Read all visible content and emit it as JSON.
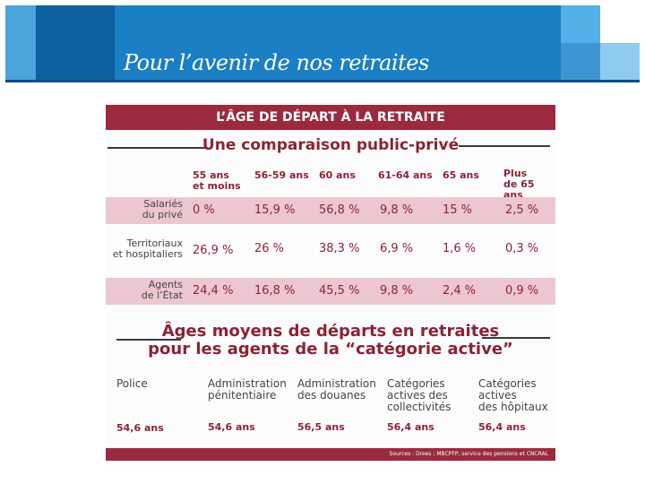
{
  "banner": {
    "title": "Pour l’avenir de nos retraites"
  },
  "doc": {
    "header": "L’ÂGE DE DÉPART À LA RETRAITE",
    "section1_title": "Une comparaison public-privé",
    "columns": [
      "55 ans\net moins",
      "56-59 ans",
      "60 ans",
      "61-64 ans",
      "65 ans",
      "Plus\nde 65 ans"
    ],
    "rows": [
      {
        "label": "Salariés\ndu privé",
        "values": [
          "0 %",
          "15,9 %",
          "56,8 %",
          "9,8 %",
          "15 %",
          "2,5 %"
        ]
      },
      {
        "label": "Territoriaux\net hospitaliers",
        "values": [
          "26,9 %",
          "26 %",
          "38,3 %",
          "6,9 %",
          "1,6 %",
          "0,3 %"
        ]
      },
      {
        "label": "Agents\nde l’État",
        "values": [
          "24,4 %",
          "16,8 %",
          "45,5 %",
          "9,8 %",
          "2,4 %",
          "0,9 %"
        ]
      }
    ],
    "section2_title_line1": "Âges moyens de départs en retraites",
    "section2_title_line2": "pour les agents de la “catégorie active”",
    "categories": [
      {
        "label": "Police",
        "value": "54,6 ans"
      },
      {
        "label": "Administration\npénitentiaire",
        "value": "54,6 ans"
      },
      {
        "label": "Administration\ndes douanes",
        "value": "56,5 ans"
      },
      {
        "label": "Catégories\nactives des\ncollectivités",
        "value": "56,4 ans"
      },
      {
        "label": "Catégories\nactives\ndes hôpitaux",
        "value": "56,4 ans"
      }
    ],
    "sources": "Sources : Drees ; MBCPFP, service des pensions et CNCRAL"
  }
}
